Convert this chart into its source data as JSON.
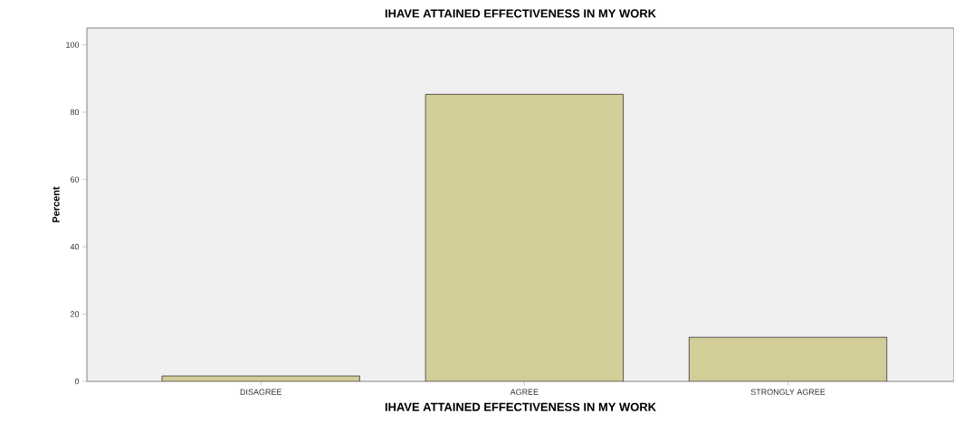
{
  "chart_data": {
    "type": "bar",
    "title": "IHAVE ATTAINED EFFECTIVENESS IN MY WORK",
    "xlabel": "IHAVE ATTAINED EFFECTIVENESS IN MY WORK",
    "ylabel": "Percent",
    "categories": [
      "DISAGREE",
      "AGREE",
      "STRONGLY AGREE"
    ],
    "values": [
      1.6,
      85.3,
      13.1
    ],
    "color": "#d3ce98",
    "ylim": [
      0,
      105
    ],
    "yticks": [
      0,
      20,
      40,
      60,
      80,
      100
    ]
  }
}
